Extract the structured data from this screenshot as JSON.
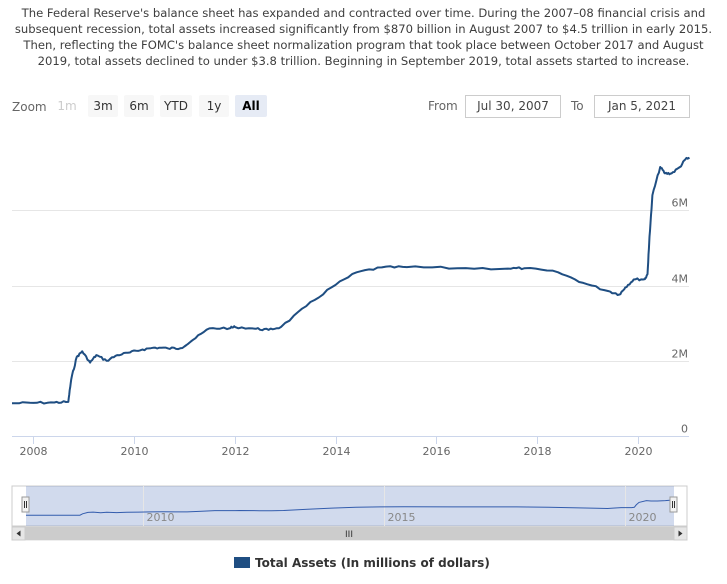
{
  "description": "The Federal Reserve's balance sheet has expanded and contracted over time. During the 2007–08 financial crisis and subsequent recession, total assets increased significantly from $870 billion in August 2007 to $4.5 trillion in early 2015. Then, reflecting the FOMC's balance sheet normalization program that took place between October 2017 and August 2019, total assets declined to under $3.8 trillion. Beginning in September 2019, total assets started to increase.",
  "range_selector": {
    "zoom_label": "Zoom",
    "buttons": [
      {
        "label": "1m",
        "state": "disabled"
      },
      {
        "label": "3m",
        "state": "normal"
      },
      {
        "label": "6m",
        "state": "normal"
      },
      {
        "label": "YTD",
        "state": "normal"
      },
      {
        "label": "1y",
        "state": "normal"
      },
      {
        "label": "All",
        "state": "active"
      }
    ],
    "from_label": "From",
    "from_value": "Jul 30, 2007",
    "to_label": "To",
    "to_value": "Jan 5, 2021"
  },
  "navigator": {
    "x_ticks": [
      "2010",
      "2015",
      "2020"
    ],
    "scroll_handle_glyph": "III"
  },
  "chart_data": {
    "type": "line",
    "title": "",
    "xlabel": "",
    "ylabel": "",
    "x_range": [
      "2007-07-30",
      "2021-01-05"
    ],
    "ylim": [
      0,
      8000000
    ],
    "y_ticks": [
      0,
      2000000,
      4000000,
      6000000
    ],
    "y_tick_labels": [
      "0",
      "2M",
      "4M",
      "6M"
    ],
    "x_ticks": [
      "2008",
      "2010",
      "2012",
      "2014",
      "2016",
      "2018",
      "2020"
    ],
    "grid": "horizontal",
    "legend_position": "bottom-center",
    "series": [
      {
        "name": "Total Assets (In millions of dollars)",
        "color": "#1f4e82",
        "points": [
          [
            "2007-07-30",
            870000
          ],
          [
            "2008-01-01",
            880000
          ],
          [
            "2008-06-01",
            890000
          ],
          [
            "2008-09-10",
            905000
          ],
          [
            "2008-10-01",
            1500000
          ],
          [
            "2008-11-10",
            2100000
          ],
          [
            "2008-12-20",
            2250000
          ],
          [
            "2009-02-15",
            1950000
          ],
          [
            "2009-04-01",
            2150000
          ],
          [
            "2009-06-15",
            2000000
          ],
          [
            "2009-09-01",
            2150000
          ],
          [
            "2009-12-01",
            2220000
          ],
          [
            "2010-03-01",
            2300000
          ],
          [
            "2010-06-01",
            2350000
          ],
          [
            "2010-09-01",
            2330000
          ],
          [
            "2010-12-01",
            2330000
          ],
          [
            "2011-03-01",
            2550000
          ],
          [
            "2011-06-30",
            2860000
          ],
          [
            "2011-12-01",
            2870000
          ],
          [
            "2012-01-01",
            2900000
          ],
          [
            "2012-06-01",
            2850000
          ],
          [
            "2012-09-01",
            2820000
          ],
          [
            "2012-12-01",
            2900000
          ],
          [
            "2013-06-01",
            3450000
          ],
          [
            "2013-12-01",
            3950000
          ],
          [
            "2014-06-01",
            4350000
          ],
          [
            "2014-12-01",
            4480000
          ],
          [
            "2015-06-01",
            4490000
          ],
          [
            "2016-06-01",
            4460000
          ],
          [
            "2017-06-01",
            4450000
          ],
          [
            "2017-10-01",
            4460000
          ],
          [
            "2018-06-01",
            4350000
          ],
          [
            "2018-12-01",
            4070000
          ],
          [
            "2019-06-01",
            3850000
          ],
          [
            "2019-08-20",
            3760000
          ],
          [
            "2019-10-01",
            3950000
          ],
          [
            "2019-12-01",
            4160000
          ],
          [
            "2020-02-20",
            4170000
          ],
          [
            "2020-03-10",
            4300000
          ],
          [
            "2020-03-25",
            5300000
          ],
          [
            "2020-04-15",
            6400000
          ],
          [
            "2020-06-10",
            7150000
          ],
          [
            "2020-07-15",
            6980000
          ],
          [
            "2020-09-01",
            6980000
          ],
          [
            "2020-11-01",
            7150000
          ],
          [
            "2020-12-15",
            7380000
          ],
          [
            "2021-01-05",
            7360000
          ]
        ]
      }
    ]
  }
}
